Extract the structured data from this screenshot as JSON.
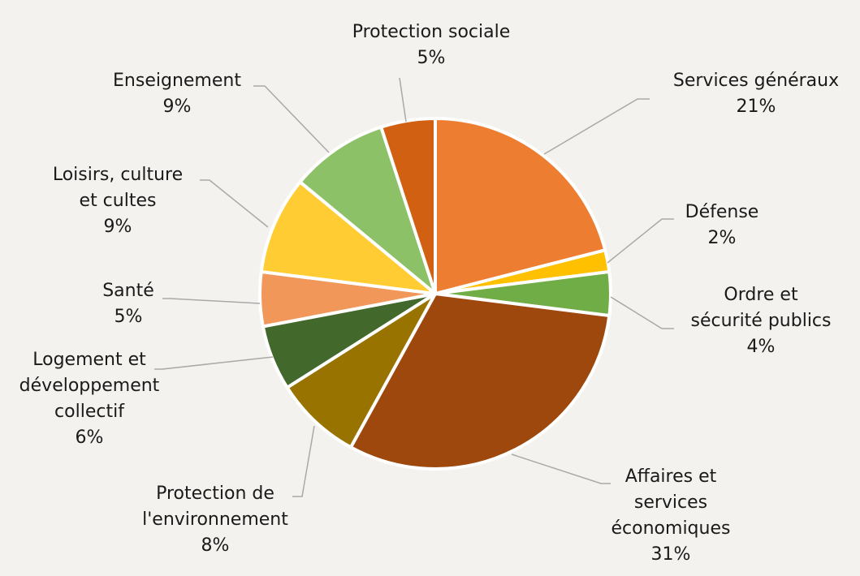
{
  "chart_data": {
    "type": "pie",
    "title": "",
    "legend": "none",
    "slices": [
      {
        "name": "Services généraux",
        "label_lines": [
          "Services généraux"
        ],
        "value": 21,
        "value_label": "21%",
        "color": "#ed7d31"
      },
      {
        "name": "Défense",
        "label_lines": [
          "Défense"
        ],
        "value": 2,
        "value_label": "2%",
        "color": "#ffc000"
      },
      {
        "name": "Ordre et sécurité publics",
        "label_lines": [
          "Ordre et",
          "sécurité publics"
        ],
        "value": 4,
        "value_label": "4%",
        "color": "#70ad47"
      },
      {
        "name": "Affaires et services économiques",
        "label_lines": [
          "Affaires et",
          "services",
          "économiques"
        ],
        "value": 31,
        "value_label": "31%",
        "color": "#9e480e"
      },
      {
        "name": "Protection de l'environnement",
        "label_lines": [
          "Protection de",
          "l'environnement"
        ],
        "value": 8,
        "value_label": "8%",
        "color": "#997300"
      },
      {
        "name": "Logement et développement collectif",
        "label_lines": [
          "Logement et",
          "développement",
          "collectif"
        ],
        "value": 6,
        "value_label": "6%",
        "color": "#43682b"
      },
      {
        "name": "Santé",
        "label_lines": [
          "Santé"
        ],
        "value": 5,
        "value_label": "5%",
        "color": "#f1975a"
      },
      {
        "name": "Loisirs, culture et cultes",
        "label_lines": [
          "Loisirs, culture",
          "et cultes"
        ],
        "value": 9,
        "value_label": "9%",
        "color": "#ffcd33"
      },
      {
        "name": "Enseignement",
        "label_lines": [
          "Enseignement"
        ],
        "value": 9,
        "value_label": "9%",
        "color": "#8cc168"
      },
      {
        "name": "Protection sociale",
        "label_lines": [
          "Protection sociale"
        ],
        "value": 5,
        "value_label": "5%",
        "color": "#d26012"
      }
    ]
  }
}
